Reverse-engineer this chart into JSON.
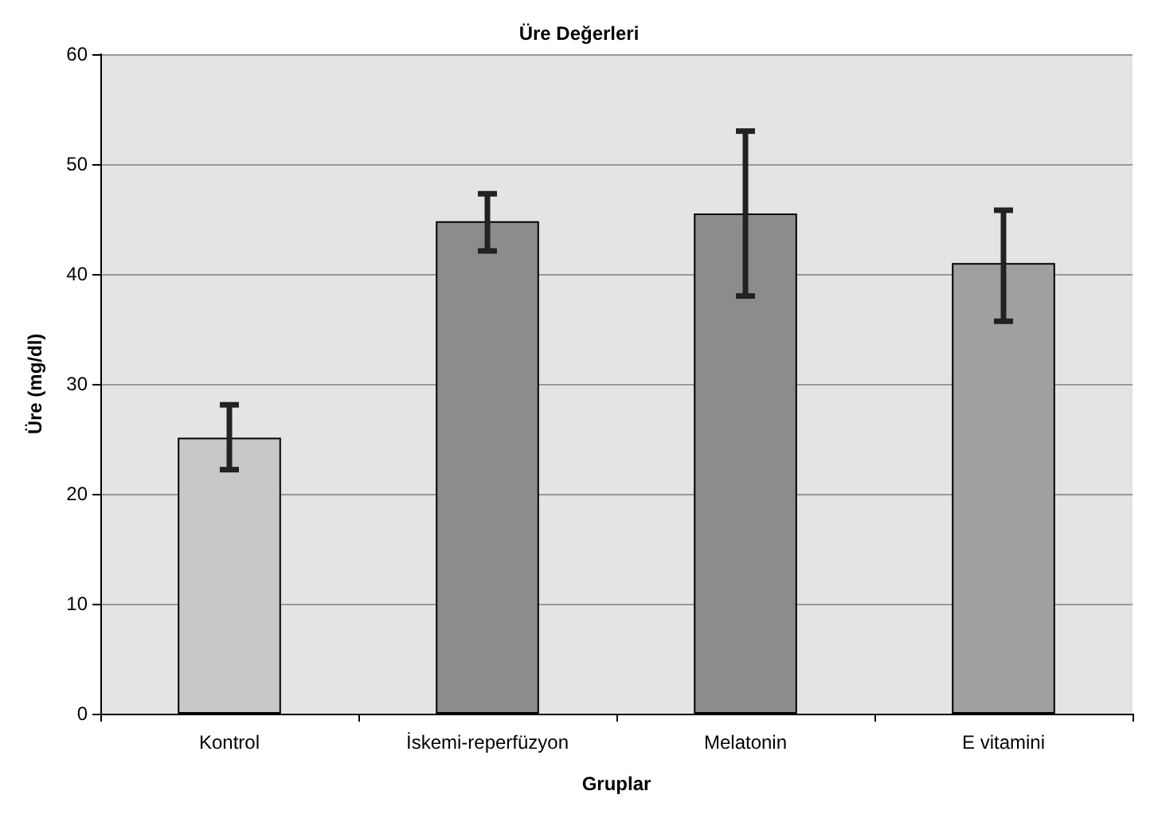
{
  "chart_data": {
    "type": "bar",
    "title": "Üre Değerleri",
    "xlabel": "Gruplar",
    "ylabel": "Üre (mg/dl)",
    "categories": [
      "Kontrol",
      "İskemi-reperfüzyon",
      "Melatonin",
      "E vitamini"
    ],
    "values": [
      25.1,
      44.8,
      45.5,
      41.0
    ],
    "errors": [
      [
        22.2,
        28.1
      ],
      [
        42.1,
        47.3
      ],
      [
        38.0,
        53.0
      ],
      [
        35.7,
        45.8
      ]
    ],
    "colors": [
      "#c8c8c8",
      "#8c8c8c",
      "#8c8c8c",
      "#a0a0a0"
    ],
    "ylim": [
      0,
      60
    ],
    "yticks": [
      0,
      10,
      20,
      30,
      40,
      50,
      60
    ],
    "grid": "y"
  }
}
